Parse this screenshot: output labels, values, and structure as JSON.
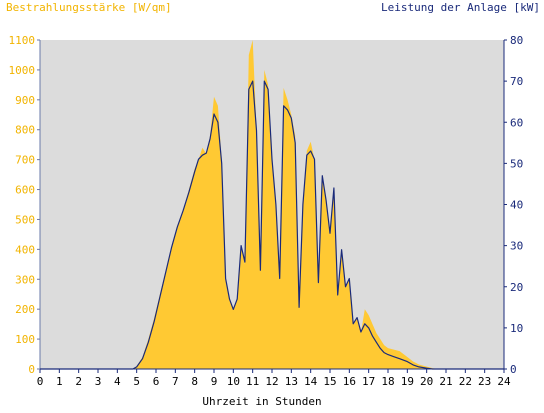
{
  "chart_data": {
    "type": "area",
    "left_axis_title": "Bestrahlungsstärke [W/qm]",
    "right_axis_title": "Leistung der Anlage [kW]",
    "xlabel": "Uhrzeit in Stunden",
    "xlim": [
      0,
      24
    ],
    "ylim_left": [
      0,
      1100
    ],
    "ylim_right": [
      0,
      80
    ],
    "x_ticks": [
      "0",
      "1",
      "2",
      "3",
      "4",
      "5",
      "6",
      "7",
      "8",
      "9",
      "10",
      "11",
      "12",
      "13",
      "14",
      "15",
      "16",
      "17",
      "18",
      "19",
      "20",
      "21",
      "22",
      "23",
      "24"
    ],
    "y_ticks_left": [
      "0",
      "100",
      "200",
      "300",
      "400",
      "500",
      "600",
      "700",
      "800",
      "900",
      "1000",
      "1100"
    ],
    "y_ticks_right": [
      "0",
      "10",
      "20",
      "30",
      "40",
      "50",
      "60",
      "70",
      "80"
    ],
    "grid": false,
    "colors": {
      "plot_background": "#dcdcdc",
      "irradiance_fill": "#ffc933",
      "power_line": "#1a2a7a",
      "left_axis_text": "#f2b400",
      "right_axis_text": "#1a2a7a"
    },
    "series": [
      {
        "axis": "left",
        "style": "filled-area",
        "x": [
          0,
          4.8,
          5.0,
          5.3,
          5.6,
          5.9,
          6.2,
          6.5,
          6.8,
          7.1,
          7.4,
          7.7,
          8.0,
          8.2,
          8.4,
          8.6,
          8.8,
          9.0,
          9.2,
          9.4,
          9.6,
          9.8,
          10.0,
          10.2,
          10.4,
          10.6,
          10.8,
          11.0,
          11.2,
          11.4,
          11.6,
          11.8,
          12.0,
          12.2,
          12.4,
          12.6,
          12.8,
          13.0,
          13.2,
          13.4,
          13.6,
          13.8,
          14.0,
          14.2,
          14.4,
          14.6,
          14.8,
          15.0,
          15.2,
          15.4,
          15.6,
          15.8,
          16.0,
          16.2,
          16.4,
          16.6,
          16.8,
          17.0,
          17.2,
          17.4,
          17.6,
          17.8,
          18.0,
          18.3,
          18.6,
          19.0,
          19.3,
          19.6,
          20.0,
          20.3,
          20.6,
          24
        ],
        "values": [
          0,
          0,
          10,
          40,
          100,
          170,
          250,
          330,
          410,
          480,
          530,
          600,
          670,
          700,
          740,
          720,
          780,
          910,
          880,
          700,
          300,
          230,
          200,
          240,
          410,
          350,
          1050,
          1100,
          800,
          330,
          1000,
          950,
          700,
          550,
          300,
          940,
          900,
          850,
          780,
          200,
          560,
          730,
          760,
          700,
          300,
          650,
          570,
          450,
          600,
          250,
          400,
          280,
          300,
          150,
          170,
          120,
          200,
          180,
          150,
          120,
          100,
          80,
          70,
          65,
          60,
          40,
          25,
          15,
          8,
          3,
          0,
          0
        ]
      },
      {
        "axis": "right",
        "style": "line",
        "x": [
          0,
          4.8,
          5.0,
          5.3,
          5.6,
          5.9,
          6.2,
          6.5,
          6.8,
          7.1,
          7.4,
          7.7,
          8.0,
          8.2,
          8.4,
          8.6,
          8.8,
          9.0,
          9.2,
          9.4,
          9.6,
          9.8,
          10.0,
          10.2,
          10.4,
          10.6,
          10.8,
          11.0,
          11.2,
          11.4,
          11.6,
          11.8,
          12.0,
          12.2,
          12.4,
          12.6,
          12.8,
          13.0,
          13.2,
          13.4,
          13.6,
          13.8,
          14.0,
          14.2,
          14.4,
          14.6,
          14.8,
          15.0,
          15.2,
          15.4,
          15.6,
          15.8,
          16.0,
          16.2,
          16.4,
          16.6,
          16.8,
          17.0,
          17.2,
          17.4,
          17.6,
          17.8,
          18.0,
          18.3,
          18.6,
          19.0,
          19.3,
          19.6,
          20.0,
          20.3,
          20.6,
          24
        ],
        "values": [
          0,
          0,
          0.5,
          2.5,
          6.5,
          11.5,
          17.5,
          23.5,
          29.5,
          34.5,
          38.5,
          43,
          48,
          51,
          52,
          52.5,
          56,
          62,
          60,
          50,
          22,
          17,
          14.5,
          17,
          30,
          26,
          68,
          70,
          58,
          24,
          70,
          68,
          51,
          40,
          22,
          64,
          63,
          61,
          55,
          15,
          40,
          52,
          53,
          51,
          21,
          47,
          41,
          33,
          44,
          18,
          29,
          20,
          22,
          11,
          12.5,
          9,
          11,
          10,
          8,
          6.5,
          5,
          4,
          3.5,
          3,
          2.5,
          1.8,
          1.0,
          0.5,
          0.2,
          0,
          0,
          0
        ]
      }
    ]
  }
}
